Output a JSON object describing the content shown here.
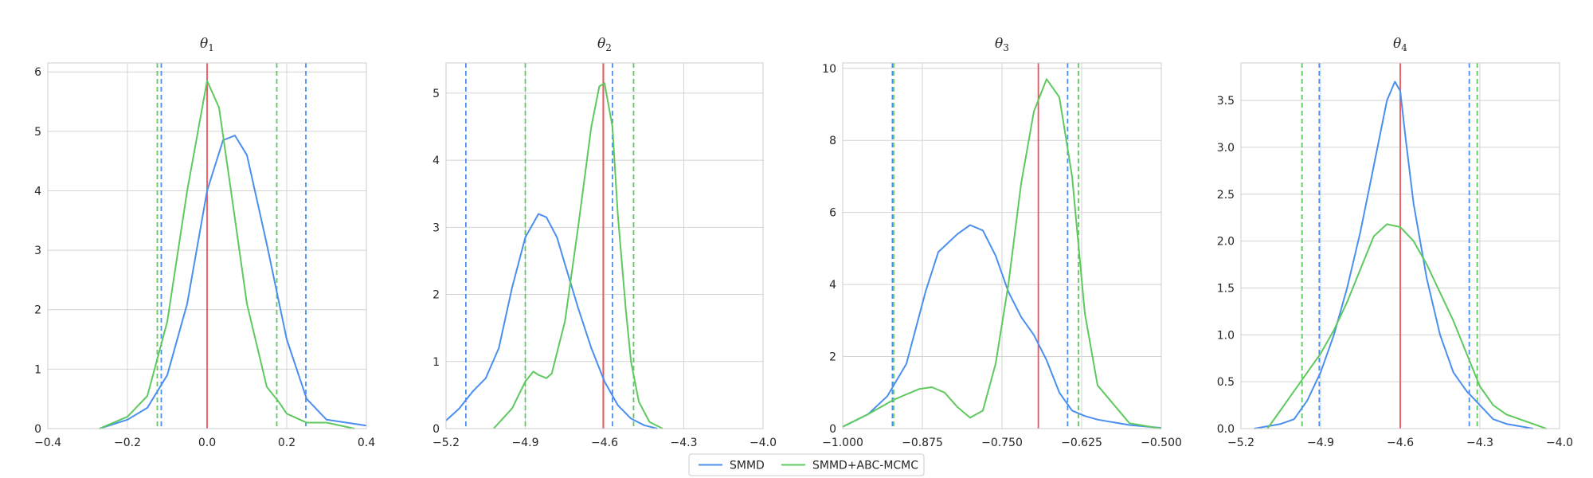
{
  "chart_data": [
    {
      "type": "line",
      "title": "θ1",
      "xlim": [
        -0.4,
        0.4
      ],
      "ylim": [
        0,
        6.15
      ],
      "xticks": [
        -0.4,
        -0.2,
        0.0,
        0.2,
        0.4
      ],
      "xtick_labels": [
        "−0.4",
        "−0.2",
        "0.0",
        "0.2",
        "0.4"
      ],
      "yticks": [
        0,
        1,
        2,
        3,
        4,
        5,
        6
      ],
      "ytick_labels": [
        "0",
        "1",
        "2",
        "3",
        "4",
        "5",
        "6"
      ],
      "grid": true,
      "true_value": 0.0,
      "intervals": [
        {
          "series": "SMMD",
          "low": -0.115,
          "high": 0.248
        },
        {
          "series": "SMMD+ABC-MCMC",
          "low": -0.125,
          "high": 0.175
        }
      ],
      "series": [
        {
          "name": "SMMD",
          "x": [
            -0.27,
            -0.2,
            -0.15,
            -0.1,
            -0.05,
            0.0,
            0.04,
            0.07,
            0.1,
            0.15,
            0.2,
            0.25,
            0.3,
            0.35,
            0.4
          ],
          "y": [
            0.0,
            0.15,
            0.35,
            0.9,
            2.1,
            4.0,
            4.85,
            4.93,
            4.6,
            3.1,
            1.5,
            0.5,
            0.15,
            0.1,
            0.05
          ]
        },
        {
          "name": "SMMD+ABC-MCMC",
          "x": [
            -0.27,
            -0.2,
            -0.15,
            -0.1,
            -0.05,
            0.0,
            0.03,
            0.06,
            0.1,
            0.15,
            0.18,
            0.2,
            0.25,
            0.3,
            0.37
          ],
          "y": [
            0.0,
            0.2,
            0.55,
            1.8,
            4.0,
            5.85,
            5.4,
            4.0,
            2.1,
            0.7,
            0.45,
            0.25,
            0.1,
            0.1,
            0.0
          ]
        }
      ]
    },
    {
      "type": "line",
      "title": "θ2",
      "xlim": [
        -5.2,
        -4.0
      ],
      "ylim": [
        0,
        5.45
      ],
      "xticks": [
        -5.2,
        -4.9,
        -4.6,
        -4.3,
        -4.0
      ],
      "xtick_labels": [
        "−5.2",
        "−4.9",
        "−4.6",
        "−4.3",
        "−4.0"
      ],
      "yticks": [
        0,
        1,
        2,
        3,
        4,
        5
      ],
      "ytick_labels": [
        "0",
        "1",
        "2",
        "3",
        "4",
        "5"
      ],
      "grid": true,
      "true_value": -4.605,
      "intervals": [
        {
          "series": "SMMD",
          "low": -5.125,
          "high": -4.57
        },
        {
          "series": "SMMD+ABC-MCMC",
          "low": -4.9,
          "high": -4.49
        }
      ],
      "series": [
        {
          "name": "SMMD",
          "x": [
            -5.2,
            -5.15,
            -5.1,
            -5.05,
            -5.0,
            -4.95,
            -4.9,
            -4.85,
            -4.82,
            -4.78,
            -4.75,
            -4.7,
            -4.65,
            -4.6,
            -4.55,
            -4.5,
            -4.45,
            -4.4
          ],
          "y": [
            0.12,
            0.3,
            0.55,
            0.75,
            1.2,
            2.1,
            2.85,
            3.2,
            3.15,
            2.85,
            2.45,
            1.8,
            1.2,
            0.7,
            0.35,
            0.15,
            0.05,
            0.0
          ]
        },
        {
          "name": "SMMD+ABC-MCMC",
          "x": [
            -5.02,
            -4.95,
            -4.9,
            -4.87,
            -4.85,
            -4.82,
            -4.8,
            -4.75,
            -4.7,
            -4.65,
            -4.62,
            -4.6,
            -4.57,
            -4.55,
            -4.52,
            -4.5,
            -4.47,
            -4.43,
            -4.38
          ],
          "y": [
            0.0,
            0.3,
            0.7,
            0.85,
            0.8,
            0.75,
            0.82,
            1.6,
            3.0,
            4.5,
            5.1,
            5.15,
            4.5,
            3.2,
            1.8,
            1.0,
            0.4,
            0.1,
            0.0
          ]
        }
      ]
    },
    {
      "type": "line",
      "title": "θ3",
      "xlim": [
        -1.0,
        -0.5
      ],
      "ylim": [
        0,
        10.15
      ],
      "xticks": [
        -1.0,
        -0.875,
        -0.75,
        -0.625,
        -0.5
      ],
      "xtick_labels": [
        "−1.000",
        "−0.875",
        "−0.750",
        "−0.625",
        "−0.500"
      ],
      "yticks": [
        0,
        2,
        4,
        6,
        8,
        10
      ],
      "ytick_labels": [
        "0",
        "2",
        "4",
        "6",
        "8",
        "10"
      ],
      "grid": true,
      "true_value": -0.693,
      "intervals": [
        {
          "series": "SMMD",
          "low": -0.922,
          "high": -0.647
        },
        {
          "series": "SMMD+ABC-MCMC",
          "low": -0.92,
          "high": -0.63
        }
      ],
      "series": [
        {
          "name": "SMMD",
          "x": [
            -1.0,
            -0.96,
            -0.93,
            -0.9,
            -0.87,
            -0.85,
            -0.82,
            -0.8,
            -0.78,
            -0.76,
            -0.74,
            -0.72,
            -0.7,
            -0.68,
            -0.66,
            -0.64,
            -0.62,
            -0.6,
            -0.55,
            -0.5
          ],
          "y": [
            0.05,
            0.4,
            0.9,
            1.8,
            3.8,
            4.9,
            5.4,
            5.65,
            5.5,
            4.8,
            3.8,
            3.1,
            2.6,
            1.9,
            1.0,
            0.5,
            0.35,
            0.25,
            0.1,
            0.02
          ]
        },
        {
          "name": "SMMD+ABC-MCMC",
          "x": [
            -1.0,
            -0.96,
            -0.92,
            -0.9,
            -0.88,
            -0.86,
            -0.84,
            -0.82,
            -0.8,
            -0.78,
            -0.76,
            -0.74,
            -0.72,
            -0.7,
            -0.68,
            -0.66,
            -0.64,
            -0.62,
            -0.6,
            -0.55,
            -0.5
          ],
          "y": [
            0.05,
            0.4,
            0.8,
            0.95,
            1.1,
            1.15,
            1.0,
            0.6,
            0.3,
            0.5,
            1.8,
            4.0,
            6.8,
            8.8,
            9.7,
            9.2,
            7.0,
            3.2,
            1.2,
            0.15,
            0.0
          ]
        }
      ]
    },
    {
      "type": "line",
      "title": "θ4",
      "xlim": [
        -5.2,
        -4.0
      ],
      "ylim": [
        0,
        3.9
      ],
      "xticks": [
        -5.2,
        -4.9,
        -4.6,
        -4.3,
        -4.0
      ],
      "xtick_labels": [
        "−5.2",
        "−4.9",
        "−4.6",
        "−4.3",
        "−4.0"
      ],
      "yticks": [
        0.0,
        0.5,
        1.0,
        1.5,
        2.0,
        2.5,
        3.0,
        3.5
      ],
      "ytick_labels": [
        "0.0",
        "0.5",
        "1.0",
        "1.5",
        "2.0",
        "2.5",
        "3.0",
        "3.5"
      ],
      "grid": true,
      "true_value": -4.6,
      "intervals": [
        {
          "series": "SMMD",
          "low": -4.905,
          "high": -4.34
        },
        {
          "series": "SMMD+ABC-MCMC",
          "low": -4.97,
          "high": -4.31
        }
      ],
      "series": [
        {
          "name": "SMMD",
          "x": [
            -5.15,
            -5.05,
            -5.0,
            -4.95,
            -4.9,
            -4.85,
            -4.8,
            -4.75,
            -4.7,
            -4.65,
            -4.62,
            -4.6,
            -4.58,
            -4.55,
            -4.5,
            -4.45,
            -4.4,
            -4.35,
            -4.3,
            -4.25,
            -4.2,
            -4.1
          ],
          "y": [
            0.0,
            0.05,
            0.1,
            0.3,
            0.6,
            1.0,
            1.5,
            2.1,
            2.8,
            3.5,
            3.7,
            3.6,
            3.1,
            2.4,
            1.6,
            1.0,
            0.6,
            0.4,
            0.25,
            0.1,
            0.05,
            0.0
          ]
        },
        {
          "name": "SMMD+ABC-MCMC",
          "x": [
            -5.1,
            -5.05,
            -5.0,
            -4.95,
            -4.9,
            -4.85,
            -4.8,
            -4.75,
            -4.7,
            -4.65,
            -4.6,
            -4.55,
            -4.5,
            -4.45,
            -4.4,
            -4.35,
            -4.3,
            -4.25,
            -4.2,
            -4.1,
            -4.05
          ],
          "y": [
            0.0,
            0.2,
            0.4,
            0.6,
            0.8,
            1.05,
            1.35,
            1.7,
            2.05,
            2.18,
            2.15,
            2.0,
            1.75,
            1.45,
            1.15,
            0.8,
            0.45,
            0.25,
            0.15,
            0.05,
            0.0
          ]
        }
      ]
    }
  ],
  "legend": {
    "position": "bottom-center",
    "items": [
      {
        "label": "SMMD",
        "color": "#4a8ff0"
      },
      {
        "label": "SMMD+ABC-MCMC",
        "color": "#5ec95e"
      }
    ]
  },
  "colors": {
    "smmd": "#4a8ff0",
    "abc": "#5ec95e",
    "true_value": "#f0505a",
    "grid": "#d4d4d4",
    "axis": "#cccccc"
  }
}
